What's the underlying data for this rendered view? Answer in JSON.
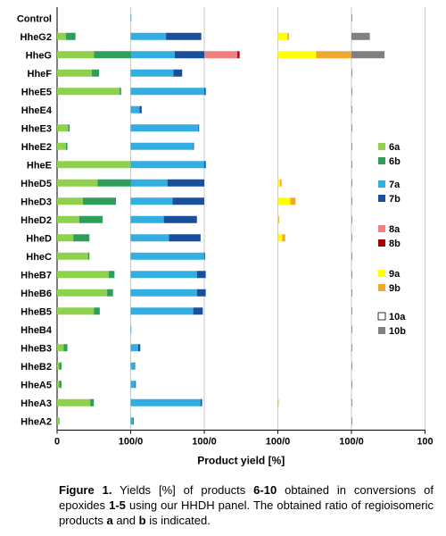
{
  "chart_data": {
    "type": "bar",
    "orientation": "horizontal",
    "stacked": true,
    "categories": [
      "Control",
      "HheG2",
      "HheG",
      "HheF",
      "HheE5",
      "HheE4",
      "HheE3",
      "HheE2",
      "HheE",
      "HheD5",
      "HheD3",
      "HheD2",
      "HheD",
      "HheC",
      "HheB7",
      "HheB6",
      "HheB5",
      "HheB4",
      "HheB3",
      "HheB2",
      "HheA5",
      "HheA3",
      "HheA2"
    ],
    "xlabel": "Product yield [%]",
    "x_ticks": [
      "0",
      "100/0",
      "100/0",
      "100/0",
      "100/0",
      "100"
    ],
    "panels": [
      {
        "product": "6",
        "series": [
          {
            "name": "6a",
            "color": "#8fd14f",
            "values": [
              0,
              12,
              50,
              47,
              85,
              0,
              15,
              12,
              100,
              55,
              35,
              30,
              22,
              42,
              70,
              68,
              50,
              0,
              9,
              3,
              3,
              45,
              2
            ]
          },
          {
            "name": "6b",
            "color": "#2e9e5a",
            "values": [
              0,
              13,
              50,
              10,
              2,
              0,
              2,
              2,
              0,
              45,
              45,
              32,
              22,
              2,
              8,
              8,
              8,
              0,
              5,
              3,
              3,
              5,
              1
            ]
          }
        ]
      },
      {
        "product": "7",
        "series": [
          {
            "name": "7a",
            "color": "#33aee0",
            "values": [
              1,
              48,
              60,
              58,
              100,
              12,
              92,
              85,
              100,
              50,
              57,
              45,
              52,
              100,
              90,
              90,
              85,
              1,
              10,
              5,
              6,
              95,
              3
            ]
          },
          {
            "name": "7b",
            "color": "#1a4f9c",
            "values": [
              0,
              48,
              40,
              12,
              2,
              3,
              1,
              1,
              2,
              50,
              43,
              45,
              43,
              1,
              12,
              12,
              13,
              0,
              3,
              1,
              1,
              2,
              1
            ]
          }
        ]
      },
      {
        "product": "8",
        "series": [
          {
            "name": "8a",
            "color": "#f08080",
            "values": [
              0,
              0,
              45,
              0,
              0,
              0,
              0,
              0,
              0,
              0,
              0,
              0,
              0,
              0,
              0,
              0,
              0,
              0,
              0,
              0,
              0,
              0,
              0
            ]
          },
          {
            "name": "8b",
            "color": "#a00000",
            "values": [
              0,
              0,
              3,
              0,
              0,
              0,
              0,
              0,
              0,
              0,
              0,
              0,
              0,
              0,
              0,
              0,
              0,
              0,
              0,
              0,
              0,
              0,
              0
            ]
          }
        ]
      },
      {
        "product": "9",
        "series": [
          {
            "name": "9a",
            "color": "#ffff00",
            "values": [
              0,
              13,
              52,
              0,
              0,
              0,
              0,
              0,
              0,
              3,
              17,
              1,
              6,
              0,
              0,
              0,
              0,
              0,
              0,
              0,
              0,
              0,
              0
            ]
          },
          {
            "name": "9b",
            "color": "#f0a830",
            "values": [
              0,
              2,
              48,
              0,
              0,
              0,
              0,
              0,
              0,
              2,
              7,
              1,
              4,
              0,
              0,
              0,
              0,
              0,
              0,
              0,
              0,
              1,
              0
            ]
          }
        ]
      },
      {
        "product": "10",
        "series": [
          {
            "name": "10a",
            "color": "#ffffff",
            "values": [
              0,
              0,
              0,
              0,
              0,
              0,
              0,
              0,
              0,
              0,
              0,
              0,
              0,
              0,
              0,
              0,
              0,
              0,
              0,
              0,
              0,
              0,
              0
            ]
          },
          {
            "name": "10b",
            "color": "#808080",
            "values": [
              1,
              25,
              45,
              1,
              1,
              1,
              1,
              1,
              1,
              1,
              1,
              1,
              1,
              1,
              1,
              1,
              1,
              1,
              1,
              1,
              1,
              1,
              1
            ]
          }
        ]
      }
    ],
    "legend_position": "right",
    "grid": true
  },
  "caption": {
    "label": "Figure 1.",
    "part1": " Yields [%] of products ",
    "products": "6-10",
    "part2": " obtained in conversions of epoxides ",
    "epoxides": "1-5",
    "part3": " using our HHDH panel. The obtained ratio of regioisomeric products ",
    "a": "a",
    "part4": " and ",
    "b": "b",
    "part5": " is indicated."
  }
}
